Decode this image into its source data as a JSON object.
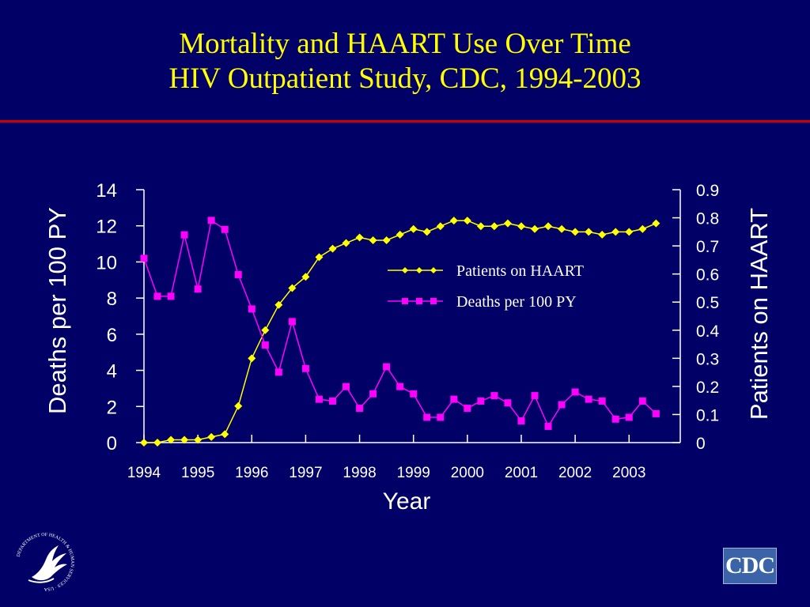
{
  "slide": {
    "title_line1": "Mortality and HAART Use Over Time",
    "title_line2": "HIV Outpatient Study, CDC, 1994-2003",
    "logos": {
      "hhs_text": "DEPARTMENT OF HEALTH & HUMAN SERVICES · USA",
      "cdc_text": "CDC"
    }
  },
  "colors": {
    "background": "#000066",
    "title": "#ffff00",
    "rule": "#cc0000",
    "haart": "#ffff00",
    "deaths": "#ff00ff",
    "axis": "#ffffff"
  },
  "chart_data": {
    "type": "line",
    "title": "",
    "xlabel": "Year",
    "ylabel": "Deaths per 100 PY",
    "y2label": "Patients on HAART",
    "xlim": [
      1994,
      2003.95
    ],
    "ylim": [
      0,
      14
    ],
    "y2lim": [
      0,
      0.9
    ],
    "x_ticks": [
      "1994",
      "1995",
      "1996",
      "1997",
      "1998",
      "1999",
      "2000",
      "2001",
      "2002",
      "2003"
    ],
    "y_ticks": [
      "0",
      "2",
      "4",
      "6",
      "8",
      "10",
      "12",
      "14"
    ],
    "y2_ticks": [
      "0",
      "0.1",
      "0.2",
      "0.3",
      "0.4",
      "0.5",
      "0.6",
      "0.7",
      "0.8",
      "0.9"
    ],
    "legend_placement": "upper-center",
    "grid": false,
    "series": [
      {
        "name": "Patients on HAART",
        "axis": "right",
        "color": "#ffff00",
        "marker": "diamond",
        "x": [
          1994,
          1994.25,
          1994.5,
          1994.75,
          1995,
          1995.25,
          1995.5,
          1995.75,
          1996,
          1996.25,
          1996.5,
          1996.75,
          1997,
          1997.25,
          1997.5,
          1997.75,
          1998,
          1998.25,
          1998.5,
          1998.75,
          1999,
          1999.25,
          1999.5,
          1999.75,
          2000,
          2000.25,
          2000.5,
          2000.75,
          2001,
          2001.25,
          2001.5,
          2001.75,
          2002,
          2002.25,
          2002.5,
          2002.75,
          2003,
          2003.25,
          2003.5
        ],
        "values": [
          0.0,
          0.0,
          0.01,
          0.01,
          0.01,
          0.02,
          0.03,
          0.13,
          0.3,
          0.4,
          0.49,
          0.55,
          0.59,
          0.66,
          0.69,
          0.71,
          0.73,
          0.72,
          0.72,
          0.74,
          0.76,
          0.75,
          0.77,
          0.79,
          0.79,
          0.77,
          0.77,
          0.78,
          0.77,
          0.76,
          0.77,
          0.76,
          0.75,
          0.75,
          0.74,
          0.75,
          0.75,
          0.76,
          0.78
        ]
      },
      {
        "name": "Deaths per 100 PY",
        "axis": "left",
        "color": "#ff00ff",
        "marker": "square",
        "x": [
          1994,
          1994.25,
          1994.5,
          1994.75,
          1995,
          1995.25,
          1995.5,
          1995.75,
          1996,
          1996.25,
          1996.5,
          1996.75,
          1997,
          1997.25,
          1997.5,
          1997.75,
          1998,
          1998.25,
          1998.5,
          1998.75,
          1999,
          1999.25,
          1999.5,
          1999.75,
          2000,
          2000.25,
          2000.5,
          2000.75,
          2001,
          2001.25,
          2001.5,
          2001.75,
          2002,
          2002.25,
          2002.5,
          2002.75,
          2003,
          2003.25,
          2003.5
        ],
        "values": [
          10.2,
          8.1,
          8.1,
          11.5,
          8.5,
          12.3,
          11.8,
          9.3,
          7.4,
          5.4,
          3.9,
          6.7,
          4.1,
          2.4,
          2.3,
          3.1,
          1.9,
          2.7,
          4.2,
          3.1,
          2.7,
          1.4,
          1.4,
          2.4,
          1.9,
          2.3,
          2.6,
          2.2,
          1.2,
          2.6,
          0.9,
          2.1,
          2.8,
          2.4,
          2.3,
          1.3,
          1.4,
          2.3,
          1.6
        ]
      }
    ]
  }
}
